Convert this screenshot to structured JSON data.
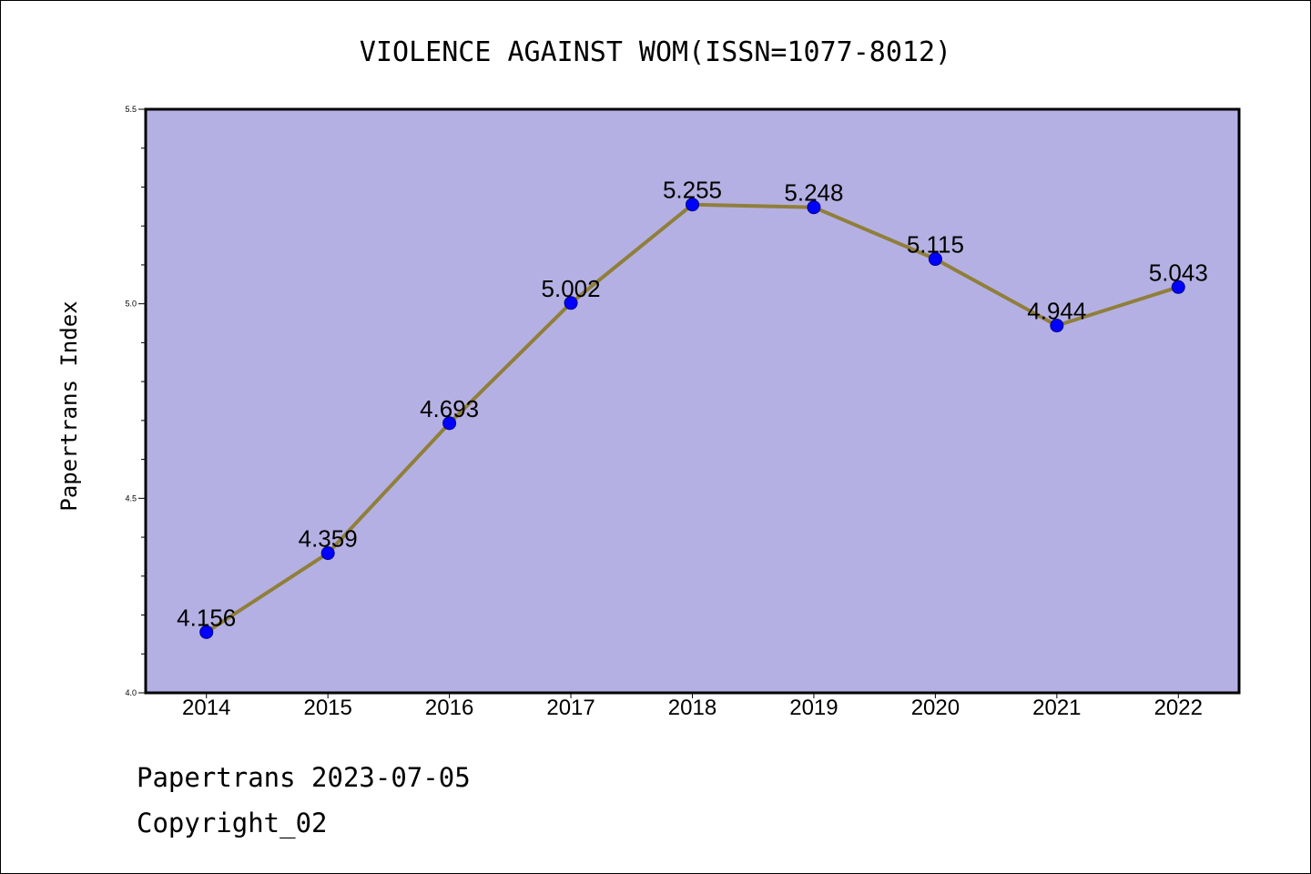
{
  "chart_data": {
    "type": "line",
    "title": "VIOLENCE AGAINST WOM(ISSN=1077-8012)",
    "ylabel": "Papertrans Index",
    "xlabel": "",
    "x": [
      "2014",
      "2015",
      "2016",
      "2017",
      "2018",
      "2019",
      "2020",
      "2021",
      "2022"
    ],
    "series": [
      {
        "values": [
          4.156,
          4.359,
          4.693,
          5.002,
          5.255,
          5.248,
          5.115,
          4.944,
          5.043
        ],
        "labels": [
          "4.156",
          "4.359",
          "4.693",
          "5.002",
          "5.255",
          "5.248",
          "5.115",
          "4.944",
          "5.043"
        ]
      }
    ],
    "ylim": [
      4.0,
      5.5
    ],
    "yticks": [
      "4.0",
      "4.5",
      "5.0",
      "5.5"
    ],
    "yminor_step": 0.1,
    "grid": false,
    "colors": {
      "plot_background": "#b5b0e3",
      "line": "#8f7f3a",
      "marker": "#0000ff"
    }
  },
  "footer": {
    "line1": "Papertrans 2023-07-05",
    "line2": "Copyright_02"
  }
}
